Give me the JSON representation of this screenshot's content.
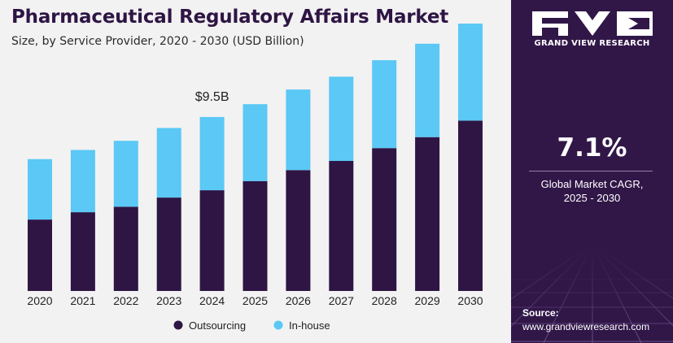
{
  "header": {
    "title": "Pharmaceutical Regulatory Affairs Market",
    "subtitle": "Size, by Service Provider, 2020 - 2030 (USD Billion)"
  },
  "colors": {
    "outsourcing": "#2e1544",
    "in_house": "#5bc8f5",
    "panel": "#311748"
  },
  "chart_data": {
    "type": "bar",
    "stacked": true,
    "title": "Pharmaceutical Regulatory Affairs Market",
    "subtitle": "Size, by Service Provider, 2020 - 2030 (USD Billion)",
    "categories": [
      "2020",
      "2021",
      "2022",
      "2023",
      "2024",
      "2025",
      "2026",
      "2027",
      "2028",
      "2029",
      "2030"
    ],
    "series": [
      {
        "name": "Outsourcing",
        "values": [
          3.9,
          4.3,
          4.6,
          5.1,
          5.5,
          6.0,
          6.6,
          7.1,
          7.8,
          8.4,
          9.3
        ]
      },
      {
        "name": "In-house",
        "values": [
          3.3,
          3.4,
          3.6,
          3.8,
          4.0,
          4.2,
          4.4,
          4.6,
          4.8,
          5.1,
          5.3
        ]
      }
    ],
    "annotations": [
      {
        "category": "2024",
        "text": "$9.5B"
      }
    ],
    "ylim": [
      0,
      15
    ],
    "grid": false,
    "legend": "bottom-center"
  },
  "brand": {
    "name": "GRAND VIEW RESEARCH"
  },
  "cagr": {
    "value": "7.1%",
    "label_line1": "Global Market CAGR,",
    "label_line2": "2025 - 2030"
  },
  "source": {
    "label": "Source:",
    "url": "www.grandviewresearch.com"
  }
}
